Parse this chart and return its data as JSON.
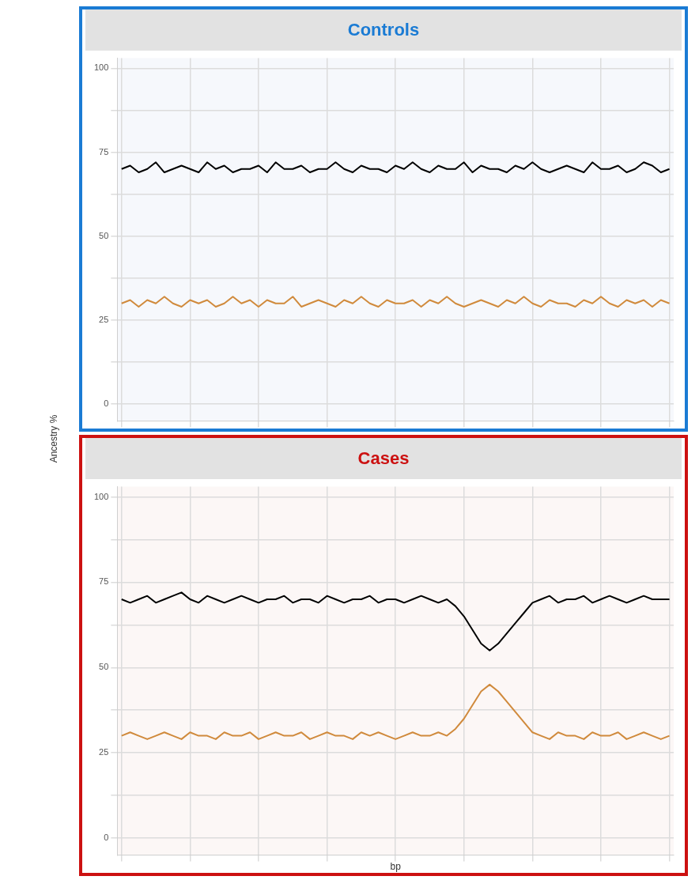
{
  "chart_data": [
    {
      "type": "line",
      "title": "Controls",
      "ylabel": "Ancestry %",
      "categories": [
        null,
        null,
        null,
        null,
        null,
        null,
        null,
        null,
        null,
        null,
        null,
        null,
        null,
        null,
        null,
        null,
        null,
        null,
        null,
        null,
        null,
        null,
        null,
        null,
        null,
        null,
        null,
        null,
        null,
        null,
        null,
        null,
        null,
        null,
        null,
        null,
        null,
        null,
        null,
        null,
        null,
        null,
        null,
        null,
        null,
        null,
        null,
        null,
        null,
        null,
        null,
        null,
        null,
        null,
        null,
        null,
        null,
        null,
        null,
        null,
        null,
        null,
        null,
        null,
        null
      ],
      "series": [
        {
          "color": "#000000",
          "values": [
            70,
            71,
            69,
            70,
            72,
            69,
            70,
            71,
            70,
            69,
            72,
            70,
            71,
            69,
            70,
            70,
            71,
            69,
            72,
            70,
            70,
            71,
            69,
            70,
            70,
            72,
            70,
            69,
            71,
            70,
            70,
            69,
            71,
            70,
            72,
            70,
            69,
            71,
            70,
            70,
            72,
            69,
            71,
            70,
            70,
            69,
            71,
            70,
            72,
            70,
            69,
            70,
            71,
            70,
            69,
            72,
            70,
            70,
            71,
            69,
            70,
            72,
            71,
            69,
            70
          ]
        },
        {
          "color": "#d08a3c",
          "values": [
            30,
            31,
            29,
            31,
            30,
            32,
            30,
            29,
            31,
            30,
            31,
            29,
            30,
            32,
            30,
            31,
            29,
            31,
            30,
            30,
            32,
            29,
            30,
            31,
            30,
            29,
            31,
            30,
            32,
            30,
            29,
            31,
            30,
            30,
            31,
            29,
            31,
            30,
            32,
            30,
            29,
            30,
            31,
            30,
            29,
            31,
            30,
            32,
            30,
            29,
            31,
            30,
            30,
            29,
            31,
            30,
            32,
            30,
            29,
            31,
            30,
            31,
            29,
            31,
            30
          ]
        }
      ],
      "ylim": [
        -5,
        103
      ],
      "yticks": [
        0,
        {
          "value": 12.5,
          "label": null
        },
        25,
        {
          "value": 37.5,
          "label": null
        },
        50,
        {
          "value": 62.5,
          "label": null
        },
        75,
        {
          "value": 87.5,
          "label": null
        },
        100
      ],
      "grid": true,
      "legend": false,
      "tick_labels": "y",
      "marker": "none",
      "line_style": "solid"
    },
    {
      "type": "line",
      "title": "Cases",
      "xlabel": "bp",
      "categories": [
        null,
        null,
        null,
        null,
        null,
        null,
        null,
        null,
        null,
        null,
        null,
        null,
        null,
        null,
        null,
        null,
        null,
        null,
        null,
        null,
        null,
        null,
        null,
        null,
        null,
        null,
        null,
        null,
        null,
        null,
        null,
        null,
        null,
        null,
        null,
        null,
        null,
        null,
        null,
        null,
        null,
        null,
        null,
        null,
        null,
        null,
        null,
        null,
        null,
        null,
        null,
        null,
        null,
        null,
        null,
        null,
        null,
        null,
        null,
        null,
        null,
        null,
        null,
        null,
        null
      ],
      "series": [
        {
          "color": "#000000",
          "values": [
            70,
            69,
            70,
            71,
            69,
            70,
            71,
            72,
            70,
            69,
            71,
            70,
            69,
            70,
            71,
            70,
            69,
            70,
            70,
            71,
            69,
            70,
            70,
            69,
            71,
            70,
            69,
            70,
            70,
            71,
            69,
            70,
            70,
            69,
            70,
            71,
            70,
            69,
            70,
            68,
            65,
            61,
            57,
            55,
            57,
            60,
            63,
            66,
            69,
            70,
            71,
            69,
            70,
            70,
            71,
            69,
            70,
            71,
            70,
            69,
            70,
            71,
            70,
            70,
            70
          ]
        },
        {
          "color": "#d08a3c",
          "values": [
            30,
            31,
            30,
            29,
            30,
            31,
            30,
            29,
            31,
            30,
            30,
            29,
            31,
            30,
            30,
            31,
            29,
            30,
            31,
            30,
            30,
            31,
            29,
            30,
            31,
            30,
            30,
            29,
            31,
            30,
            31,
            30,
            29,
            30,
            31,
            30,
            30,
            31,
            30,
            32,
            35,
            39,
            43,
            45,
            43,
            40,
            37,
            34,
            31,
            30,
            29,
            31,
            30,
            30,
            29,
            31,
            30,
            30,
            31,
            29,
            30,
            31,
            30,
            29,
            30
          ]
        }
      ],
      "ylim": [
        -5,
        103
      ],
      "yticks": [
        0,
        {
          "value": 12.5,
          "label": null
        },
        25,
        {
          "value": 37.5,
          "label": null
        },
        50,
        {
          "value": 62.5,
          "label": null
        },
        75,
        {
          "value": 87.5,
          "label": null
        },
        100
      ],
      "grid": true,
      "legend": false,
      "tick_labels": "y",
      "marker": "none",
      "line_style": "solid"
    }
  ]
}
